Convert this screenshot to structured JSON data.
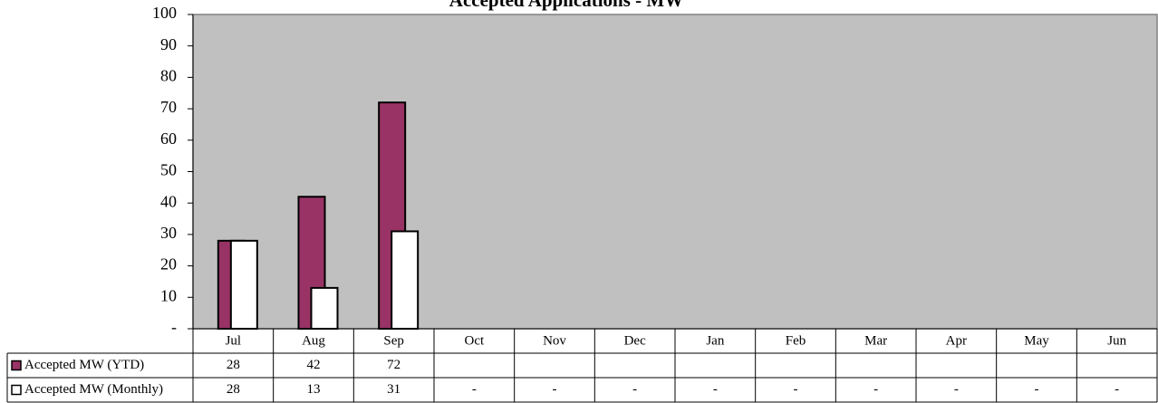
{
  "chart_data": {
    "type": "bar",
    "title": "Accepted Applications - MW",
    "categories": [
      "Jul",
      "Aug",
      "Sep",
      "Oct",
      "Nov",
      "Dec",
      "Jan",
      "Feb",
      "Mar",
      "Apr",
      "May",
      "Jun"
    ],
    "series": [
      {
        "name": "Accepted MW (YTD)",
        "color": "#993366",
        "values": [
          28,
          42,
          72,
          null,
          null,
          null,
          null,
          null,
          null,
          null,
          null,
          null
        ]
      },
      {
        "name": "Accepted MW (Monthly)",
        "color": "#ffffff",
        "values": [
          28,
          13,
          31,
          0,
          0,
          0,
          0,
          0,
          0,
          0,
          0,
          0
        ],
        "value_labels": [
          "28",
          "13",
          "31",
          "-",
          "-",
          "-",
          "-",
          "-",
          "-",
          "-",
          "-",
          "-"
        ]
      }
    ],
    "ylim": [
      0,
      100
    ],
    "yticks": [
      {
        "value": 0,
        "label": "-"
      },
      10,
      20,
      30,
      40,
      50,
      60,
      70,
      80,
      90,
      100
    ],
    "plot_background": "#c0c0c0"
  }
}
